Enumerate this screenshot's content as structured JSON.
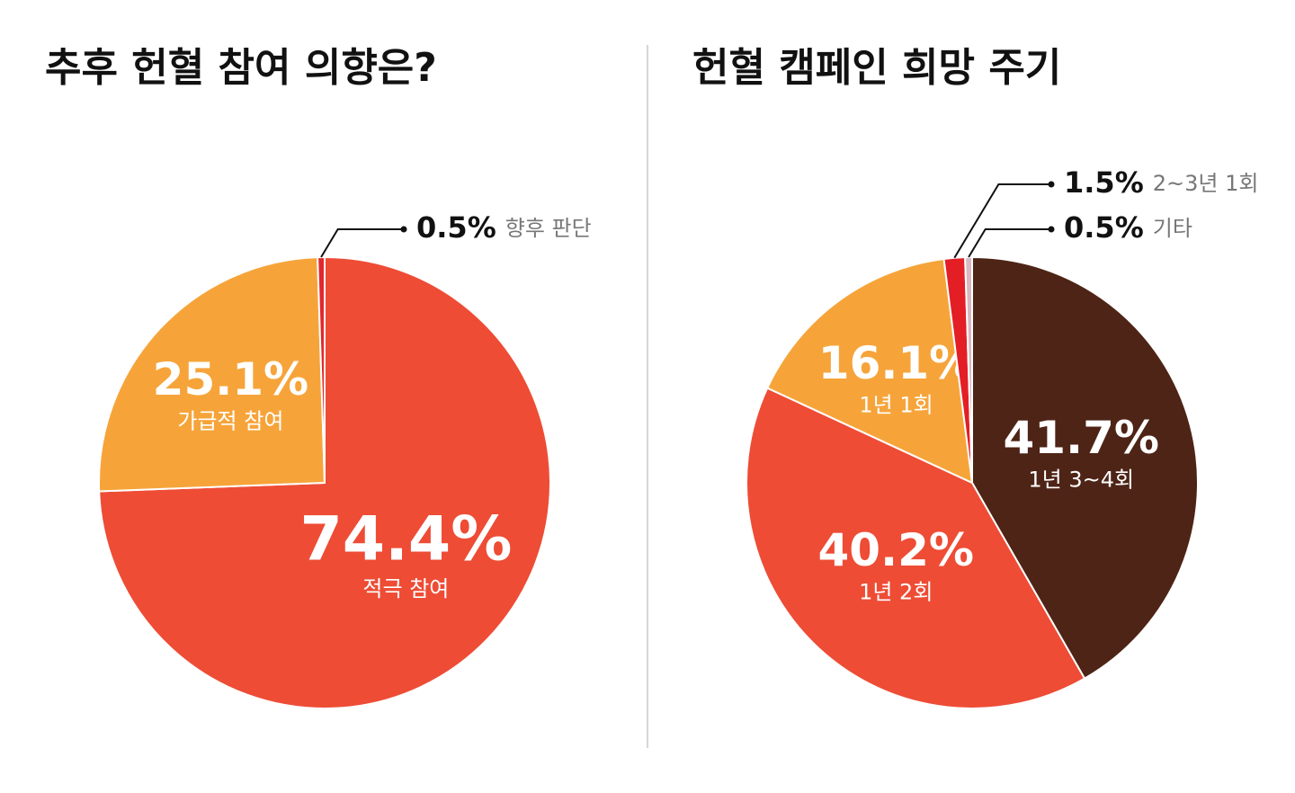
{
  "chart_data": [
    {
      "type": "pie",
      "title": "추후 헌혈 참여 의향은?",
      "labels": [
        "적극 참여",
        "가급적 참여",
        "향후 판단"
      ],
      "values": [
        74.4,
        25.1,
        0.5
      ],
      "value_labels": [
        "74.4%",
        "25.1%",
        "0.5%"
      ],
      "colors": [
        "#ee4c35",
        "#f6a43a",
        "#e0282e"
      ]
    },
    {
      "type": "pie",
      "title": "헌혈 캠페인 희망 주기",
      "labels": [
        "1년 3~4회",
        "1년 2회",
        "1년 1회",
        "2~3년 1회",
        "기타"
      ],
      "values": [
        41.7,
        40.2,
        16.1,
        1.5,
        0.5
      ],
      "value_labels": [
        "41.7%",
        "40.2%",
        "16.1%",
        "1.5%",
        "0.5%"
      ],
      "colors": [
        "#4e2416",
        "#ee4c35",
        "#f6a43a",
        "#e31e25",
        "#d9b8c0"
      ]
    }
  ]
}
